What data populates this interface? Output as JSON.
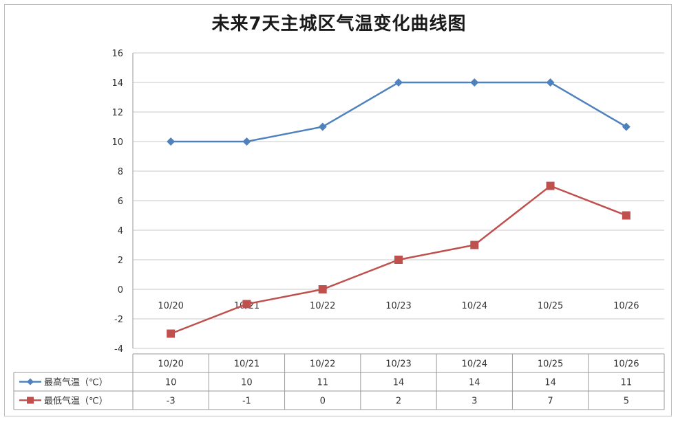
{
  "chart_data": {
    "type": "line",
    "title": "未来7天主城区气温变化曲线图",
    "categories": [
      "10/20",
      "10/21",
      "10/22",
      "10/23",
      "10/24",
      "10/25",
      "10/26"
    ],
    "ylim": [
      -4,
      16
    ],
    "yticks": [
      -4,
      -2,
      0,
      2,
      4,
      6,
      8,
      10,
      12,
      14,
      16
    ],
    "grid": true,
    "legend_position": "data-table-left",
    "series": [
      {
        "name": "最高气温（℃）",
        "values": [
          10,
          10,
          11,
          14,
          14,
          14,
          11
        ],
        "color": "#4f81bd",
        "marker": "diamond"
      },
      {
        "name": "最低气温（℃）",
        "values": [
          -3,
          -1,
          0,
          2,
          3,
          7,
          5
        ],
        "color": "#c0504d",
        "marker": "square"
      }
    ]
  }
}
